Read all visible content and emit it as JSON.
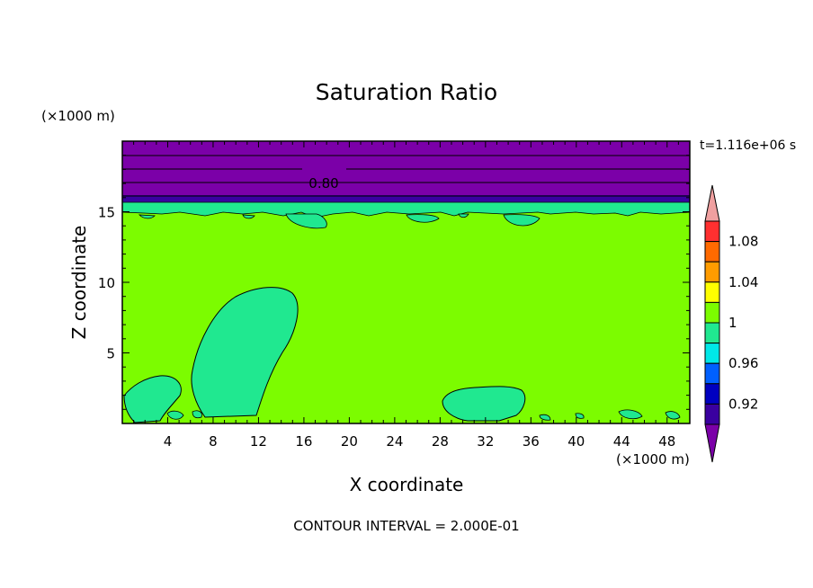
{
  "chart_data": {
    "type": "contour",
    "title": "Saturation Ratio",
    "xlabel": "X coordinate",
    "ylabel": "Z coordinate",
    "x_unit": "(×1000 m)",
    "y_unit": "(×1000 m)",
    "xlim": [
      0,
      50
    ],
    "ylim": [
      0,
      20
    ],
    "x_ticks": [
      4,
      8,
      12,
      16,
      20,
      24,
      28,
      32,
      36,
      40,
      44,
      48
    ],
    "y_ticks": [
      5,
      10,
      15
    ],
    "time_label": "t=1.116e+06 s",
    "contour_label": "0.80",
    "footer": "CONTOUR INTERVAL = 2.000E-01",
    "colorbar": {
      "tick_labels": [
        "1.08",
        "1.04",
        "1",
        "0.96",
        "0.92"
      ],
      "colors": [
        "#f0a0a0",
        "#ff3030",
        "#ff6a00",
        "#ff9c00",
        "#ffff00",
        "#7cfc00",
        "#20e890",
        "#00e8e8",
        "#0060ff",
        "#0000c0",
        "#3a00a0",
        "#7b00a8"
      ]
    },
    "colors": {
      "domain": "#7cfc00",
      "upper_layer": "#7b00a8",
      "tropopause_band": "#3a00a0",
      "near_saturated_band": "#20e890",
      "regions": "#20e890"
    }
  }
}
